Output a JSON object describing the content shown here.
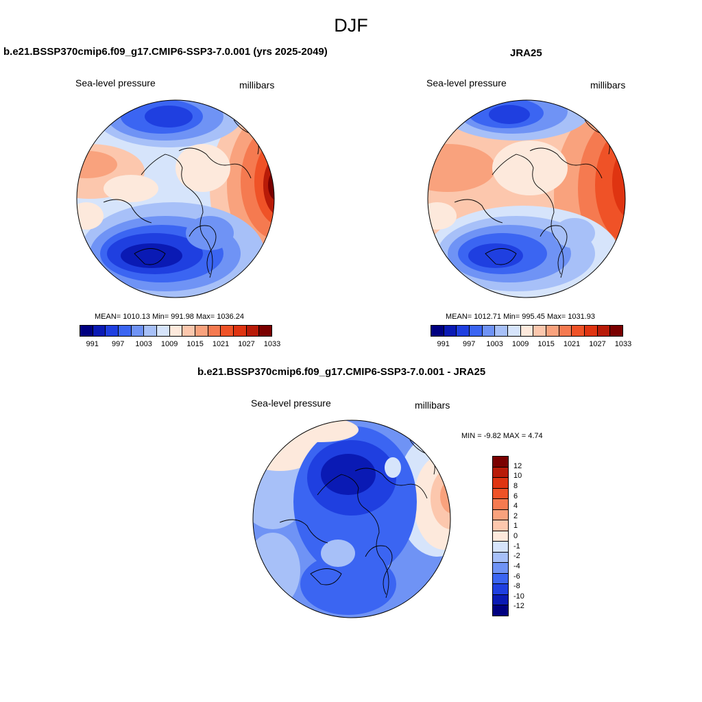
{
  "title": "DJF",
  "panels": {
    "left": {
      "title": "b.e21.BSSP370cmip6.f09_g17.CMIP6-SSP3-7.0.001 (yrs 2025-2049)",
      "variable": "Sea-level pressure",
      "units": "millibars",
      "stats": "MEAN= 1010.13  Min= 991.98  Max= 1036.24"
    },
    "right": {
      "title": "JRA25",
      "variable": "Sea-level pressure",
      "units": "millibars",
      "stats": "MEAN= 1012.71  Min= 995.45  Max= 1031.93"
    },
    "diff": {
      "title": "b.e21.BSSP370cmip6.f09_g17.CMIP6-SSP3-7.0.001 - JRA25",
      "variable": "Sea-level pressure",
      "units": "millibars",
      "stats": "MIN =  -9.82 MAX =   4.74"
    }
  },
  "colorbars": {
    "abs_labels": [
      "991",
      "997",
      "1003",
      "1009",
      "1015",
      "1021",
      "1027",
      "1033"
    ],
    "abs_colors": [
      "#000080",
      "#0a1ab4",
      "#1f3fe0",
      "#3b65f2",
      "#6f93f5",
      "#a7c0f8",
      "#d6e4fb",
      "#fde9dc",
      "#fcc7ad",
      "#f9a27d",
      "#f57a50",
      "#ef5227",
      "#df3411",
      "#b81b08",
      "#7a0000"
    ],
    "diff_labels": [
      "12",
      "10",
      "8",
      "6",
      "4",
      "2",
      "1",
      "0",
      "-1",
      "-2",
      "-4",
      "-6",
      "-8",
      "-10",
      "-12"
    ],
    "diff_colors": [
      "#7a0000",
      "#b81b08",
      "#df3411",
      "#ef5227",
      "#f57a50",
      "#f9a27d",
      "#fcc7ad",
      "#fde9dc",
      "#d6e4fb",
      "#a7c0f8",
      "#6f93f5",
      "#3b65f2",
      "#1f3fe0",
      "#0a1ab4",
      "#000080"
    ]
  }
}
